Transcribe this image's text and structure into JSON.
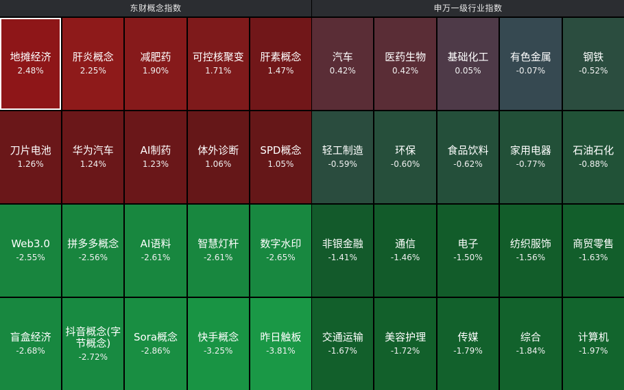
{
  "panels": [
    {
      "id": "left",
      "title": "东财概念指数",
      "tiles": [
        {
          "name": "地摊经济",
          "pct": "2.48%",
          "color": "#8e1618",
          "selected": true
        },
        {
          "name": "肝炎概念",
          "pct": "2.25%",
          "color": "#8e1a1a",
          "selected": false
        },
        {
          "name": "减肥药",
          "pct": "1.90%",
          "color": "#861a1b",
          "selected": false
        },
        {
          "name": "可控核聚变",
          "pct": "1.71%",
          "color": "#7e1a1b",
          "selected": false
        },
        {
          "name": "肝素概念",
          "pct": "1.47%",
          "color": "#711719",
          "selected": false
        },
        {
          "name": "刀片电池",
          "pct": "1.26%",
          "color": "#6a1719",
          "selected": false
        },
        {
          "name": "华为汽车",
          "pct": "1.24%",
          "color": "#6a1719",
          "selected": false
        },
        {
          "name": "AI制药",
          "pct": "1.23%",
          "color": "#6a1719",
          "selected": false
        },
        {
          "name": "体外诊断",
          "pct": "1.06%",
          "color": "#651718",
          "selected": false
        },
        {
          "name": "SPD概念",
          "pct": "1.05%",
          "color": "#651718",
          "selected": false
        },
        {
          "name": "Web3.0",
          "pct": "-2.55%",
          "color": "#18853e",
          "selected": false
        },
        {
          "name": "拼多多概念",
          "pct": "-2.56%",
          "color": "#18853e",
          "selected": false
        },
        {
          "name": "AI语料",
          "pct": "-2.61%",
          "color": "#18873f",
          "selected": false
        },
        {
          "name": "智慧灯杆",
          "pct": "-2.61%",
          "color": "#18873f",
          "selected": false
        },
        {
          "name": "数字水印",
          "pct": "-2.65%",
          "color": "#188840",
          "selected": false
        },
        {
          "name": "盲盒经济",
          "pct": "-2.68%",
          "color": "#188840",
          "selected": false
        },
        {
          "name": "抖音概念(字节概念)",
          "pct": "-2.72%",
          "color": "#188a41",
          "selected": false
        },
        {
          "name": "Sora概念",
          "pct": "-2.86%",
          "color": "#198e42",
          "selected": false
        },
        {
          "name": "快手概念",
          "pct": "-3.25%",
          "color": "#199444",
          "selected": false
        },
        {
          "name": "昨日触板",
          "pct": "-3.81%",
          "color": "#1a9846",
          "selected": false
        }
      ]
    },
    {
      "id": "right",
      "title": "申万一级行业指数",
      "tiles": [
        {
          "name": "汽车",
          "pct": "0.42%",
          "color": "#5a2d36",
          "selected": false
        },
        {
          "name": "医药生物",
          "pct": "0.42%",
          "color": "#5a2d36",
          "selected": false
        },
        {
          "name": "基础化工",
          "pct": "0.05%",
          "color": "#4e3a48",
          "selected": false
        },
        {
          "name": "有色金属",
          "pct": "-0.07%",
          "color": "#364951",
          "selected": false
        },
        {
          "name": "钢铁",
          "pct": "-0.52%",
          "color": "#2b4d3f",
          "selected": false
        },
        {
          "name": "轻工制造",
          "pct": "-0.59%",
          "color": "#2a4c3e",
          "selected": false
        },
        {
          "name": "环保",
          "pct": "-0.60%",
          "color": "#264f3b",
          "selected": false
        },
        {
          "name": "食品饮料",
          "pct": "-0.62%",
          "color": "#244f3a",
          "selected": false
        },
        {
          "name": "家用电器",
          "pct": "-0.77%",
          "color": "#225038",
          "selected": false
        },
        {
          "name": "石油石化",
          "pct": "-0.88%",
          "color": "#215237",
          "selected": false
        },
        {
          "name": "非银金融",
          "pct": "-1.41%",
          "color": "#135a2b",
          "selected": false
        },
        {
          "name": "通信",
          "pct": "-1.46%",
          "color": "#125b2a",
          "selected": false
        },
        {
          "name": "电子",
          "pct": "-1.50%",
          "color": "#125c2a",
          "selected": false
        },
        {
          "name": "纺织服饰",
          "pct": "-1.56%",
          "color": "#125d2a",
          "selected": false
        },
        {
          "name": "商贸零售",
          "pct": "-1.63%",
          "color": "#125e2b",
          "selected": false
        },
        {
          "name": "交通运输",
          "pct": "-1.67%",
          "color": "#125f2b",
          "selected": false
        },
        {
          "name": "美容护理",
          "pct": "-1.72%",
          "color": "#12602b",
          "selected": false
        },
        {
          "name": "传媒",
          "pct": "-1.79%",
          "color": "#12612c",
          "selected": false
        },
        {
          "name": "综合",
          "pct": "-1.84%",
          "color": "#12622c",
          "selected": false
        },
        {
          "name": "计算机",
          "pct": "-1.97%",
          "color": "#12652d",
          "selected": false
        }
      ]
    }
  ]
}
